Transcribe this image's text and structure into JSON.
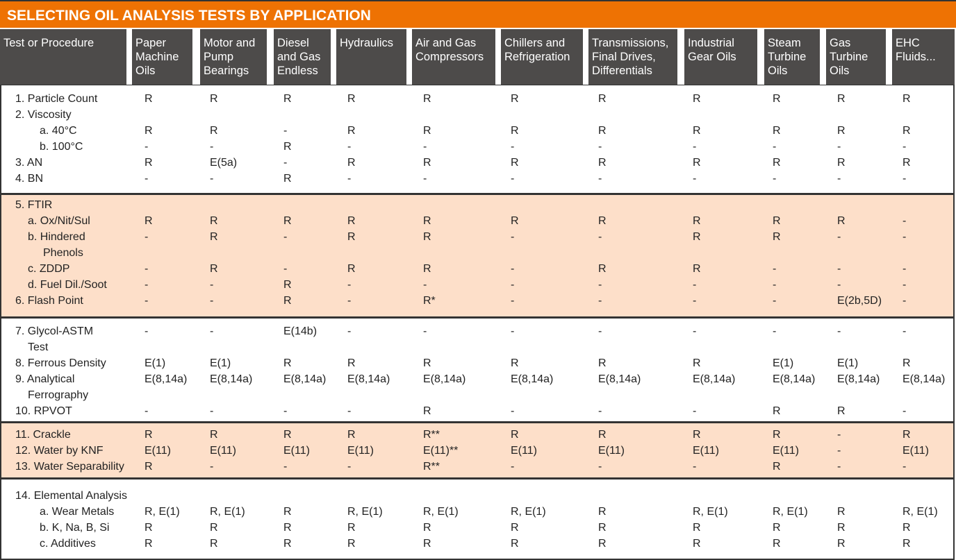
{
  "title": "SELECTING OIL ANALYSIS TESTS BY APPLICATION",
  "colors": {
    "title_bar": "#ee7203",
    "header_bg": "#4d4b4a",
    "highlight_section": "#fddfc9"
  },
  "columns": [
    "Test or Procedure",
    "Paper Machine Oils",
    "Motor and Pump Bearings",
    "Diesel and Gas Endless",
    "Hydraulics",
    "Air and Gas Compressors",
    "Chillers and Refrigeration",
    "Transmissions, Final Drives, Differentials",
    "Industrial Gear Oils",
    "Steam Turbine Oils",
    "Gas Turbine Oils",
    "EHC Fluids..."
  ],
  "sections": [
    {
      "highlight": false,
      "rows": [
        {
          "label": "1. Particle Count",
          "level": 0,
          "values": [
            "R",
            "R",
            "R",
            "R",
            "R",
            "R",
            "R",
            "R",
            "R",
            "R",
            "R"
          ]
        },
        {
          "label": "2. Viscosity",
          "level": 0,
          "values": []
        },
        {
          "label": "a. 40°C",
          "level": 2,
          "values": [
            "R",
            "R",
            "-",
            "R",
            "R",
            "R",
            "R",
            "R",
            "R",
            "R",
            "R"
          ]
        },
        {
          "label": "b. 100°C",
          "level": 2,
          "values": [
            "-",
            "-",
            "R",
            "-",
            "-",
            "-",
            "-",
            "-",
            "-",
            "-",
            "-"
          ]
        },
        {
          "label": "3. AN",
          "level": 0,
          "values": [
            "R",
            "E(5a)",
            "-",
            "R",
            "R",
            "R",
            "R",
            "R",
            "R",
            "R",
            "R"
          ]
        },
        {
          "label": "4. BN",
          "level": 0,
          "values": [
            "-",
            "-",
            "R",
            "-",
            "-",
            "-",
            "-",
            "-",
            "-",
            "-",
            "-"
          ]
        }
      ]
    },
    {
      "highlight": true,
      "rows": [
        {
          "label": "5. FTIR",
          "level": 0,
          "values": []
        },
        {
          "label": "a. Ox/Nit/Sul",
          "level": 1,
          "values": [
            "R",
            "R",
            "R",
            "R",
            "R",
            "R",
            "R",
            "R",
            "R",
            "R",
            "-"
          ]
        },
        {
          "label": "b. Hindered",
          "label2": "Phenols",
          "level": 1,
          "values": [
            "-",
            "R",
            "-",
            "R",
            "R",
            "-",
            "-",
            "R",
            "R",
            "-",
            "-"
          ]
        },
        {
          "label": "c. ZDDP",
          "level": 1,
          "values": [
            "-",
            "R",
            "-",
            "R",
            "R",
            "-",
            "R",
            "R",
            "-",
            "-",
            "-"
          ]
        },
        {
          "label": "d. Fuel Dil./Soot",
          "level": 1,
          "values": [
            "-",
            "-",
            "R",
            "-",
            "-",
            "-",
            "-",
            "-",
            "-",
            "-",
            "-"
          ]
        },
        {
          "label": "6. Flash Point",
          "level": 0,
          "values": [
            "-",
            "-",
            "R",
            "-",
            "R*",
            "-",
            "-",
            "-",
            "-",
            "E(2b,5D)",
            "-"
          ]
        }
      ]
    },
    {
      "highlight": false,
      "rows": [
        {
          "label": "7.  Glycol-ASTM",
          "label2": "Test",
          "level": 0,
          "values": [
            "-",
            "-",
            "E(14b)",
            "-",
            "-",
            "-",
            "-",
            "-",
            "-",
            "-",
            "-"
          ]
        },
        {
          "label": "8.  Ferrous Density",
          "level": 0,
          "values": [
            "E(1)",
            "E(1)",
            "R",
            "R",
            "R",
            "R",
            "R",
            "R",
            "E(1)",
            "E(1)",
            "R"
          ]
        },
        {
          "label": "9.   Analytical",
          "label2": "Ferrography",
          "level": 0,
          "values": [
            "E(8,14a)",
            "E(8,14a)",
            "E(8,14a)",
            "E(8,14a)",
            "E(8,14a)",
            "E(8,14a)",
            "E(8,14a)",
            "E(8,14a)",
            "E(8,14a)",
            "E(8,14a)",
            "E(8,14a)"
          ]
        },
        {
          "label": "10. RPVOT",
          "level": 0,
          "values": [
            "-",
            "-",
            "-",
            "-",
            "R",
            "-",
            "-",
            "-",
            "R",
            "R",
            "-"
          ]
        }
      ]
    },
    {
      "highlight": true,
      "rows": [
        {
          "label": "11. Crackle",
          "level": 0,
          "values": [
            "R",
            "R",
            "R",
            "R",
            "R**",
            "R",
            "R",
            "R",
            "R",
            "-",
            "R"
          ]
        },
        {
          "label": "12. Water by KNF",
          "level": 0,
          "values": [
            "E(11)",
            "E(11)",
            "E(11)",
            "E(11)",
            "E(11)**",
            "E(11)",
            "E(11)",
            "E(11)",
            "E(11)",
            "-",
            "E(11)"
          ]
        },
        {
          "label": "13. Water Separability",
          "level": 0,
          "values": [
            "R",
            "-",
            "-",
            "-",
            "R**",
            "-",
            "-",
            "-",
            "R",
            "-",
            "-"
          ]
        }
      ]
    },
    {
      "highlight": false,
      "rows": [
        {
          "label": "14. Elemental Analysis",
          "level": 0,
          "values": []
        },
        {
          "label": "a. Wear Metals",
          "level": 2,
          "values": [
            "R, E(1)",
            "R, E(1)",
            "R",
            "R, E(1)",
            "R, E(1)",
            "R, E(1)",
            "R",
            "R, E(1)",
            "R, E(1)",
            "R",
            "R, E(1)"
          ]
        },
        {
          "label": "b. K, Na, B, Si",
          "level": 2,
          "values": [
            "R",
            "R",
            "R",
            "R",
            "R",
            "R",
            "R",
            "R",
            "R",
            "R",
            "R"
          ]
        },
        {
          "label": "c. Additives",
          "level": 2,
          "values": [
            "R",
            "R",
            "R",
            "R",
            "R",
            "R",
            "R",
            "R",
            "R",
            "R",
            "R"
          ]
        }
      ]
    }
  ]
}
